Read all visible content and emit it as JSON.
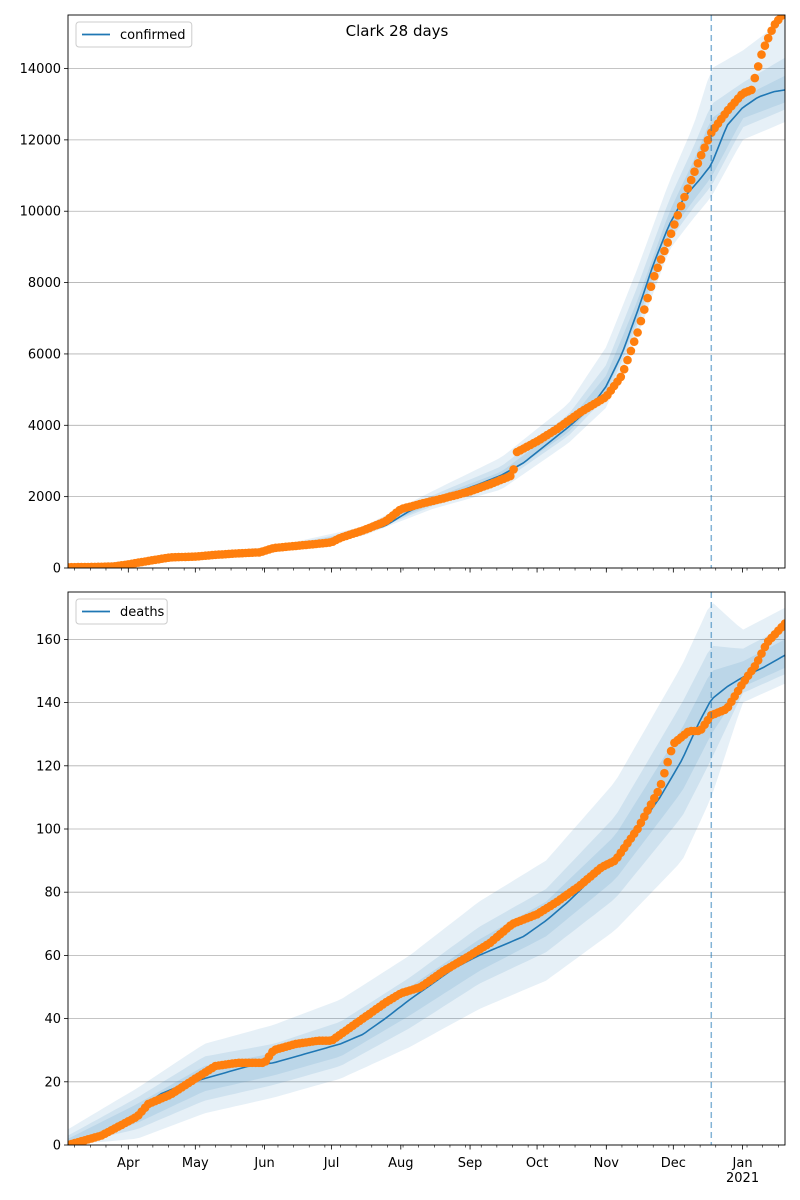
{
  "figure": {
    "title": "Clark 28 days",
    "forecast_date": "2020-12-18"
  },
  "chart_data": [
    {
      "type": "line",
      "id": "confirmed",
      "legend": [
        "confirmed"
      ],
      "legend_loc": "upper-left",
      "xlim": [
        "2020-03-05",
        "2021-01-20"
      ],
      "ylim": [
        0,
        15500
      ],
      "yticks": [
        0,
        2000,
        4000,
        6000,
        8000,
        10000,
        12000,
        14000
      ],
      "grid": "y",
      "median": {
        "x": [
          "2020-03-05",
          "2020-03-15",
          "2020-03-25",
          "2020-04-05",
          "2020-04-15",
          "2020-04-25",
          "2020-05-05",
          "2020-05-15",
          "2020-05-25",
          "2020-06-05",
          "2020-06-15",
          "2020-06-25",
          "2020-07-05",
          "2020-07-15",
          "2020-07-25",
          "2020-08-05",
          "2020-08-15",
          "2020-08-25",
          "2020-09-05",
          "2020-09-15",
          "2020-09-25",
          "2020-10-05",
          "2020-10-15",
          "2020-10-25",
          "2020-11-01",
          "2020-11-08",
          "2020-11-15",
          "2020-11-22",
          "2020-11-29",
          "2020-12-06",
          "2020-12-13",
          "2020-12-18",
          "2020-12-25",
          "2021-01-01",
          "2021-01-08",
          "2021-01-15",
          "2021-01-20"
        ],
        "y": [
          0,
          10,
          40,
          180,
          260,
          310,
          340,
          380,
          430,
          540,
          610,
          680,
          800,
          990,
          1180,
          1600,
          1870,
          2100,
          2350,
          2600,
          2950,
          3450,
          3950,
          4500,
          5100,
          6000,
          7200,
          8500,
          9600,
          10400,
          10900,
          11300,
          12400,
          12900,
          13200,
          13350,
          13400
        ]
      },
      "bands": [
        {
          "level": "outer",
          "x": [
            "2020-03-05",
            "2020-04-15",
            "2020-06-05",
            "2020-07-15",
            "2020-08-15",
            "2020-09-15",
            "2020-10-15",
            "2020-11-01",
            "2020-11-15",
            "2020-11-29",
            "2020-12-10",
            "2020-12-18",
            "2021-01-01",
            "2021-01-20"
          ],
          "low": [
            0,
            220,
            480,
            900,
            1650,
            2200,
            3500,
            4500,
            6500,
            8900,
            9800,
            10400,
            12000,
            12500
          ],
          "high": [
            20,
            320,
            600,
            1150,
            2150,
            3100,
            4600,
            6200,
            8400,
            10800,
            12400,
            14000,
            14500,
            15400
          ]
        },
        {
          "level": "middle",
          "x": [
            "2020-03-05",
            "2020-04-15",
            "2020-06-05",
            "2020-07-15",
            "2020-08-15",
            "2020-09-15",
            "2020-10-15",
            "2020-11-01",
            "2020-11-15",
            "2020-11-29",
            "2020-12-10",
            "2020-12-18",
            "2021-01-01",
            "2021-01-20"
          ],
          "low": [
            0,
            240,
            510,
            940,
            1730,
            2400,
            3700,
            4800,
            6800,
            9150,
            10100,
            10700,
            12350,
            12850
          ],
          "high": [
            15,
            290,
            570,
            1080,
            2030,
            2850,
            4300,
            5700,
            7900,
            10300,
            11800,
            13000,
            13600,
            14300
          ]
        },
        {
          "level": "inner",
          "x": [
            "2020-03-05",
            "2020-04-15",
            "2020-06-05",
            "2020-07-15",
            "2020-08-15",
            "2020-09-15",
            "2020-10-15",
            "2020-11-01",
            "2020-11-15",
            "2020-11-29",
            "2020-12-10",
            "2020-12-18",
            "2021-01-01",
            "2021-01-20"
          ],
          "low": [
            0,
            250,
            525,
            960,
            1790,
            2500,
            3800,
            4950,
            6950,
            9350,
            10300,
            10950,
            12600,
            13050
          ],
          "high": [
            10,
            275,
            555,
            1030,
            1950,
            2700,
            4100,
            5400,
            7500,
            9950,
            11400,
            12600,
            13200,
            13800
          ]
        }
      ],
      "observed": {
        "x": [
          "2020-03-05",
          "2020-03-15",
          "2020-03-25",
          "2020-04-01",
          "2020-04-10",
          "2020-04-20",
          "2020-05-01",
          "2020-05-10",
          "2020-05-20",
          "2020-05-30",
          "2020-06-05",
          "2020-06-15",
          "2020-06-25",
          "2020-07-01",
          "2020-07-05",
          "2020-07-15",
          "2020-07-25",
          "2020-08-01",
          "2020-08-10",
          "2020-08-20",
          "2020-09-01",
          "2020-09-10",
          "2020-09-20",
          "2020-09-22",
          "2020-10-01",
          "2020-10-10",
          "2020-10-20",
          "2020-11-01",
          "2020-11-08",
          "2020-11-15",
          "2020-11-22",
          "2020-11-29",
          "2020-12-06",
          "2020-12-13",
          "2020-12-18",
          "2020-12-25",
          "2021-01-01",
          "2021-01-05",
          "2021-01-10",
          "2021-01-15",
          "2021-01-20"
        ],
        "y": [
          20,
          30,
          40,
          100,
          200,
          300,
          320,
          370,
          410,
          440,
          560,
          620,
          680,
          720,
          850,
          1050,
          1300,
          1650,
          1800,
          1950,
          2150,
          2350,
          2600,
          3250,
          3550,
          3900,
          4350,
          4800,
          5400,
          6600,
          8100,
          9200,
          10400,
          11500,
          12200,
          12800,
          13300,
          13400,
          14500,
          15200,
          15600
        ]
      }
    },
    {
      "type": "line",
      "id": "deaths",
      "legend": [
        "deaths"
      ],
      "legend_loc": "upper-left",
      "xlim": [
        "2020-03-05",
        "2021-01-20"
      ],
      "ylim": [
        0,
        175
      ],
      "yticks": [
        0,
        20,
        40,
        60,
        80,
        100,
        120,
        140,
        160
      ],
      "xtick_labels": [
        "Apr",
        "May",
        "Jun",
        "Jul",
        "Aug",
        "Sep",
        "Oct",
        "Nov",
        "Dec",
        "Jan\n2021"
      ],
      "grid": "y",
      "median": {
        "x": [
          "2020-03-05",
          "2020-03-15",
          "2020-03-25",
          "2020-04-05",
          "2020-04-15",
          "2020-04-25",
          "2020-05-05",
          "2020-05-15",
          "2020-05-25",
          "2020-06-05",
          "2020-06-15",
          "2020-06-25",
          "2020-07-05",
          "2020-07-15",
          "2020-07-25",
          "2020-08-05",
          "2020-08-15",
          "2020-08-25",
          "2020-09-05",
          "2020-09-15",
          "2020-09-25",
          "2020-10-05",
          "2020-10-15",
          "2020-10-25",
          "2020-11-05",
          "2020-11-15",
          "2020-11-25",
          "2020-12-05",
          "2020-12-12",
          "2020-12-18",
          "2020-12-25",
          "2021-01-01",
          "2021-01-10",
          "2021-01-20"
        ],
        "y": [
          0,
          2,
          4,
          10,
          16,
          19,
          21,
          23,
          25,
          26,
          28,
          30,
          32,
          35,
          40,
          46,
          51,
          56,
          60,
          63,
          66,
          71,
          77,
          84,
          91,
          100,
          110,
          122,
          133,
          141,
          145,
          148,
          151,
          155
        ]
      },
      "bands": [
        {
          "level": "outer",
          "x": [
            "2020-03-05",
            "2020-04-05",
            "2020-05-05",
            "2020-06-05",
            "2020-07-05",
            "2020-08-05",
            "2020-09-05",
            "2020-10-05",
            "2020-11-05",
            "2020-12-05",
            "2020-12-18",
            "2021-01-01",
            "2021-01-20"
          ],
          "low": [
            0,
            2,
            10,
            15,
            21,
            31,
            43,
            52,
            68,
            90,
            110,
            140,
            146
          ],
          "high": [
            5,
            18,
            32,
            38,
            46,
            60,
            77,
            90,
            115,
            152,
            172,
            163,
            170
          ]
        },
        {
          "level": "middle",
          "x": [
            "2020-03-05",
            "2020-04-05",
            "2020-05-05",
            "2020-06-05",
            "2020-07-05",
            "2020-08-05",
            "2020-09-05",
            "2020-10-05",
            "2020-11-05",
            "2020-12-05",
            "2020-12-18",
            "2021-01-01",
            "2021-01-20"
          ],
          "low": [
            0,
            5,
            14,
            19,
            25,
            37,
            51,
            61,
            78,
            104,
            122,
            143,
            149
          ],
          "high": [
            3,
            15,
            28,
            32,
            39,
            53,
            69,
            81,
            104,
            140,
            158,
            157,
            164
          ]
        },
        {
          "level": "inner",
          "x": [
            "2020-03-05",
            "2020-04-05",
            "2020-05-05",
            "2020-06-05",
            "2020-07-05",
            "2020-08-05",
            "2020-09-05",
            "2020-10-05",
            "2020-11-05",
            "2020-12-05",
            "2020-12-18",
            "2021-01-01",
            "2021-01-20"
          ],
          "low": [
            0,
            7,
            17,
            22,
            28,
            41,
            55,
            66,
            84,
            112,
            130,
            145,
            151
          ],
          "high": [
            2,
            13,
            25,
            29,
            35,
            50,
            65,
            77,
            98,
            132,
            150,
            153,
            160
          ]
        }
      ],
      "observed": {
        "x": [
          "2020-03-05",
          "2020-03-20",
          "2020-03-28",
          "2020-04-05",
          "2020-04-10",
          "2020-04-20",
          "2020-05-01",
          "2020-05-10",
          "2020-05-20",
          "2020-06-01",
          "2020-06-05",
          "2020-06-15",
          "2020-06-25",
          "2020-07-01",
          "2020-07-05",
          "2020-07-15",
          "2020-07-25",
          "2020-08-01",
          "2020-08-10",
          "2020-08-20",
          "2020-09-01",
          "2020-09-10",
          "2020-09-20",
          "2020-10-01",
          "2020-10-10",
          "2020-10-20",
          "2020-10-30",
          "2020-11-05",
          "2020-11-15",
          "2020-11-25",
          "2020-12-01",
          "2020-12-08",
          "2020-12-13",
          "2020-12-18",
          "2020-12-25",
          "2021-01-01",
          "2021-01-07",
          "2021-01-12",
          "2021-01-20"
        ],
        "y": [
          0,
          3,
          6,
          9,
          13,
          16,
          21,
          25,
          26,
          26,
          30,
          32,
          33,
          33,
          35,
          40,
          45,
          48,
          50,
          55,
          60,
          64,
          70,
          73,
          77,
          82,
          88,
          90,
          100,
          113,
          127,
          131,
          131,
          136,
          138,
          146,
          152,
          159,
          165
        ]
      }
    }
  ]
}
